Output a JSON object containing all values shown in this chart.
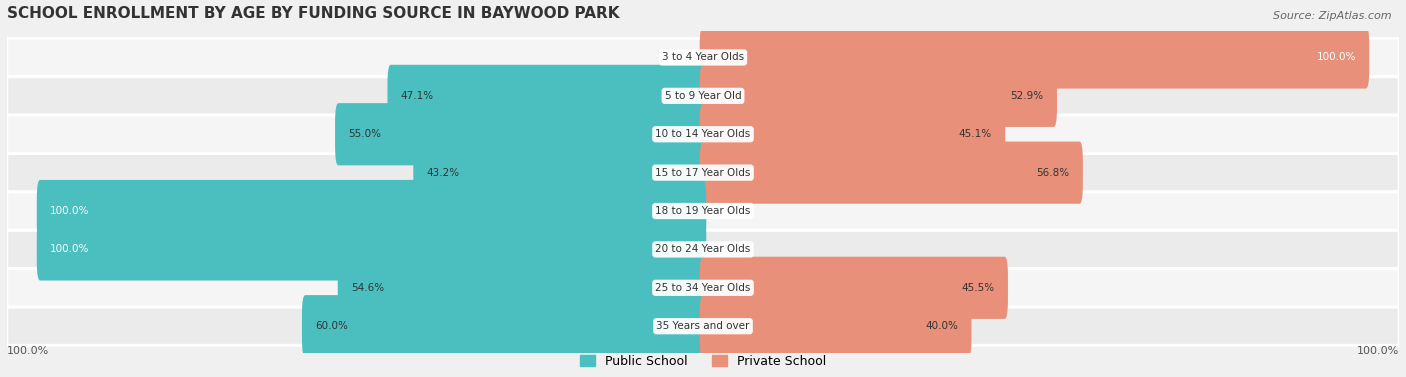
{
  "title": "SCHOOL ENROLLMENT BY AGE BY FUNDING SOURCE IN BAYWOOD PARK",
  "source": "Source: ZipAtlas.com",
  "categories": [
    "3 to 4 Year Olds",
    "5 to 9 Year Old",
    "10 to 14 Year Olds",
    "15 to 17 Year Olds",
    "18 to 19 Year Olds",
    "20 to 24 Year Olds",
    "25 to 34 Year Olds",
    "35 Years and over"
  ],
  "public_pct": [
    0.0,
    47.1,
    55.0,
    43.2,
    100.0,
    100.0,
    54.6,
    60.0
  ],
  "private_pct": [
    100.0,
    52.9,
    45.1,
    56.8,
    0.0,
    0.0,
    45.5,
    40.0
  ],
  "public_color": "#4BBFBF",
  "private_color": "#E8907A",
  "bg_color": "#f0f0f0",
  "row_bg": "#e8e8e8",
  "label_bg": "#ffffff",
  "axis_label_left": "100.0%",
  "axis_label_right": "100.0%",
  "legend_public": "Public School",
  "legend_private": "Private School"
}
